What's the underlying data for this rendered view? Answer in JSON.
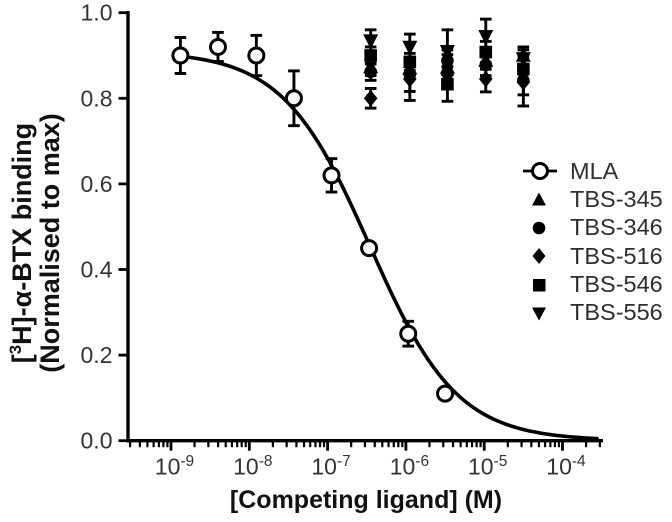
{
  "figure": {
    "background": "#ffffff"
  },
  "chart_data": {
    "type": "scatter",
    "title": "",
    "xlabel": "[Competing ligand] (M)",
    "ylabel": {
      "pre": "[",
      "sup": "3",
      "post": "H]-α-BTX binding",
      "line2": "(Normalised to max)"
    },
    "x_axis": {
      "scale": "log10",
      "unit": "M",
      "major_tick_exponents": [
        -9,
        -8,
        -7,
        -6,
        -5,
        -4
      ],
      "minor_tick_multiples": [
        2,
        3,
        4,
        5,
        6,
        7,
        8,
        9
      ],
      "range_log10": [
        -9.55,
        -3.49
      ]
    },
    "y_axis": {
      "tick_labels": [
        "0.0",
        "0.2",
        "0.4",
        "0.6",
        "0.8",
        "1.0"
      ],
      "tick_values": [
        0,
        0.2,
        0.4,
        0.6,
        0.8,
        1.0
      ],
      "range": [
        0,
        1.0
      ]
    },
    "series": [
      {
        "name": "MLA",
        "marker": "circle-open",
        "x_log10": [
          -8.88,
          -8.4,
          -7.91,
          -7.43,
          -6.95,
          -6.47,
          -5.97,
          -5.5
        ],
        "y": [
          0.9,
          0.92,
          0.9,
          0.8,
          0.62,
          0.45,
          0.25,
          0.11
        ],
        "y_err": [
          0.042,
          0.034,
          0.047,
          0.064,
          0.039,
          0,
          0.029,
          0
        ]
      },
      {
        "name": "TBS-345",
        "marker": "triangle-up",
        "x_log10": [
          -6.45,
          -5.95,
          -5.47,
          -4.98,
          -4.5
        ],
        "y": [
          0.873,
          0.87,
          0.872,
          0.888,
          0.9
        ],
        "y_err": [
          0.02,
          0.025,
          0.03,
          0.02,
          0.02
        ]
      },
      {
        "name": "TBS-346",
        "marker": "circle-filled",
        "x_log10": [
          -6.45,
          -5.95,
          -5.47,
          -4.98,
          -4.5
        ],
        "y": [
          0.862,
          0.856,
          0.888,
          0.878,
          0.842
        ],
        "y_err": [
          0.02,
          0.04,
          0.025,
          0.025,
          0.06
        ]
      },
      {
        "name": "TBS-516",
        "marker": "diamond-filled",
        "x_log10": [
          -6.45,
          -5.95,
          -5.47,
          -4.98,
          -4.5
        ],
        "y": [
          0.8,
          0.845,
          0.855,
          0.845,
          0.838
        ],
        "y_err": [
          0.023,
          0.05,
          0.02,
          0.03,
          0.03
        ]
      },
      {
        "name": "TBS-546",
        "marker": "square-filled",
        "x_log10": [
          -6.45,
          -5.95,
          -5.47,
          -4.98,
          -4.5
        ],
        "y": [
          0.9,
          0.885,
          0.833,
          0.908,
          0.868
        ],
        "y_err": [
          0.02,
          0.02,
          0.04,
          0.025,
          0.03
        ]
      },
      {
        "name": "TBS-556",
        "marker": "triangle-down",
        "x_log10": [
          -6.45,
          -5.95,
          -5.47,
          -4.98,
          -4.5
        ],
        "y": [
          0.935,
          0.92,
          0.91,
          0.945,
          0.893
        ],
        "y_err": [
          0.025,
          0.03,
          0.05,
          0.04,
          0.02
        ]
      }
    ],
    "fit_curve": {
      "series": "MLA",
      "model": "sigmoidal-dose-response",
      "top": 0.91,
      "bottom": 0,
      "log10_IC50": -6.46,
      "hill_slope": -0.78,
      "x_range_log10": [
        -8.88,
        -3.55
      ]
    },
    "legend": {
      "position": "right",
      "entries": [
        {
          "label": "MLA",
          "marker": "circle-open-line"
        },
        {
          "label": "TBS-345",
          "marker": "triangle-up"
        },
        {
          "label": "TBS-346",
          "marker": "circle-filled"
        },
        {
          "label": "TBS-516",
          "marker": "diamond-filled"
        },
        {
          "label": "TBS-546",
          "marker": "square-filled"
        },
        {
          "label": "TBS-556",
          "marker": "triangle-down"
        }
      ]
    },
    "colors": {
      "foreground": "#000000",
      "background": "#ffffff",
      "tick_label": "#333333"
    },
    "grid": false
  }
}
